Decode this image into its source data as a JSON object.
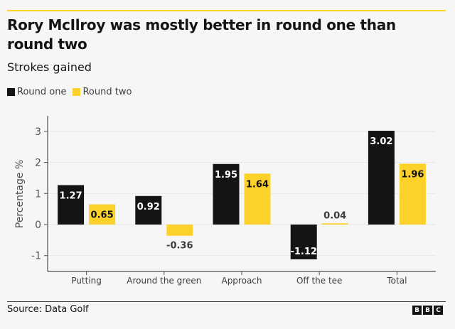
{
  "header": {
    "title": "Rory McIlroy was mostly better in round one than round two",
    "subtitle": "Strokes gained"
  },
  "footer": {
    "source": "Source: Data Golf",
    "logo_letters": [
      "B",
      "B",
      "C"
    ]
  },
  "colors": {
    "round_one": "#141414",
    "round_two": "#fcd12a",
    "accent_line": "#fcd12a"
  },
  "chart_data": {
    "type": "bar",
    "title": "Rory McIlroy was mostly better in round one than round two",
    "subtitle": "Strokes gained",
    "xlabel": "",
    "ylabel": "Percentage %",
    "ylim": [
      -1.5,
      3.3
    ],
    "yticks": [
      -1,
      0,
      1,
      2,
      3
    ],
    "grid": true,
    "legend_position": "top-left",
    "categories": [
      "Putting",
      "Around the green",
      "Approach",
      "Off the tee",
      "Total"
    ],
    "series": [
      {
        "name": "Round one",
        "color": "#141414",
        "values": [
          1.27,
          0.92,
          1.95,
          -1.12,
          3.02
        ]
      },
      {
        "name": "Round two",
        "color": "#fcd12a",
        "values": [
          0.65,
          -0.36,
          1.64,
          0.04,
          1.96
        ]
      }
    ]
  }
}
